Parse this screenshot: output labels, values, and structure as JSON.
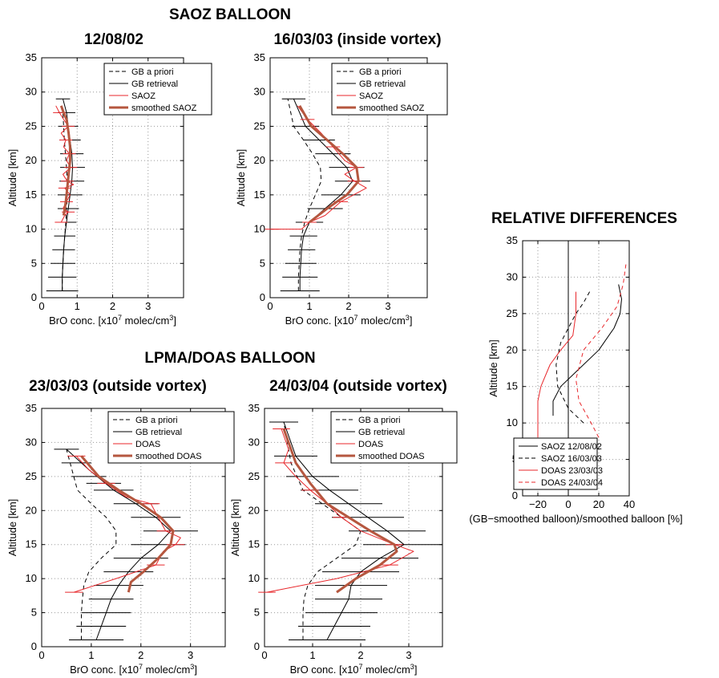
{
  "titles": {
    "saoz": "SAOZ BALLOON",
    "lpma": "LPMA/DOAS BALLOON",
    "rel": "RELATIVE DIFFERENCES"
  },
  "colors": {
    "black": "#000000",
    "red": "#e8272b",
    "brown": "#b5573f",
    "grid": "#999999"
  },
  "chart_data": [
    {
      "id": "p1",
      "type": "line",
      "title": "12/08/02",
      "xlabel_pre": "BrO conc. [x10",
      "xlabel_sup": "7",
      "xlabel_post": " molec/cm",
      "xlabel_sup2": "3",
      "xlabel_end": "]",
      "ylabel": "Altitude [km]",
      "xlim": [
        0,
        4
      ],
      "ylim": [
        0,
        35
      ],
      "xticks": [
        0,
        1,
        2,
        3
      ],
      "yticks": [
        0,
        5,
        10,
        15,
        20,
        25,
        30,
        35
      ],
      "legend": [
        "GB a priori",
        "GB retrieval",
        "SAOZ",
        "smoothed SAOZ"
      ],
      "series": [
        {
          "name": "GB a priori",
          "style": "dashed",
          "color": "black",
          "width": 1,
          "x": [
            0.58,
            0.58,
            0.6,
            0.62,
            0.65,
            0.68,
            0.7,
            0.72,
            0.72,
            0.7,
            0.67,
            0.64,
            0.62,
            0.6
          ],
          "y": [
            1,
            3,
            5,
            7,
            9,
            11,
            13,
            15,
            17,
            19,
            21,
            23,
            25,
            27
          ]
        },
        {
          "name": "GB retrieval",
          "style": "solid",
          "color": "black",
          "width": 1,
          "x": [
            0.58,
            0.58,
            0.6,
            0.62,
            0.65,
            0.7,
            0.75,
            0.8,
            0.85,
            0.87,
            0.85,
            0.8,
            0.75,
            0.7,
            0.6
          ],
          "y": [
            1,
            3,
            5,
            7,
            9,
            11,
            13,
            15,
            17,
            19,
            21,
            23,
            25,
            27,
            29
          ]
        },
        {
          "name": "SAOZ",
          "style": "solid",
          "color": "red",
          "width": 1,
          "x": [
            0.55,
            0.65,
            0.75,
            0.6,
            0.7,
            0.8,
            0.65,
            0.9,
            0.72,
            0.6,
            0.82,
            0.7,
            0.78,
            0.62,
            0.68,
            0.55,
            0.75,
            0.62,
            0.5,
            0.4
          ],
          "y": [
            11,
            12,
            12.5,
            13,
            14,
            15,
            16,
            16.5,
            17,
            18,
            19,
            20,
            21,
            22,
            23,
            24,
            25,
            26,
            27,
            28
          ]
        },
        {
          "name": "smoothed SAOZ",
          "style": "solid",
          "color": "brown",
          "width": 3,
          "x": [
            0.62,
            0.68,
            0.72,
            0.76,
            0.8,
            0.8,
            0.76,
            0.7,
            0.62,
            0.55
          ],
          "y": [
            12,
            14,
            16,
            18,
            20,
            22,
            24,
            26,
            27,
            28
          ]
        }
      ],
      "errorbars": {
        "x": [
          0.58,
          0.58,
          0.6,
          0.62,
          0.65,
          0.7,
          0.75,
          0.8,
          0.85,
          0.87,
          0.85,
          0.8,
          0.75,
          0.7,
          0.6
        ],
        "y": [
          1,
          3,
          5,
          7,
          9,
          11,
          13,
          15,
          17,
          19,
          21,
          23,
          25,
          27,
          29
        ],
        "err": [
          0.45,
          0.4,
          0.35,
          0.32,
          0.3,
          0.28,
          0.3,
          0.35,
          0.35,
          0.35,
          0.33,
          0.3,
          0.28,
          0.25,
          0.2
        ]
      }
    },
    {
      "id": "p2",
      "type": "line",
      "title": "16/03/03 (inside vortex)",
      "xlabel_pre": "BrO conc. [x10",
      "xlabel_sup": "7",
      "xlabel_post": " molec/cm",
      "xlabel_sup2": "3",
      "xlabel_end": "]",
      "ylabel": "Altitude [km]",
      "xlim": [
        0,
        4
      ],
      "ylim": [
        0,
        35
      ],
      "xticks": [
        0,
        1,
        2,
        3
      ],
      "yticks": [
        0,
        5,
        10,
        15,
        20,
        25,
        30,
        35
      ],
      "legend": [
        "GB a priori",
        "GB retrieval",
        "SAOZ",
        "smoothed SAOZ"
      ],
      "series": [
        {
          "name": "GB a priori",
          "style": "dashed",
          "color": "black",
          "width": 1,
          "x": [
            0.72,
            0.72,
            0.74,
            0.76,
            0.8,
            0.88,
            1.0,
            1.15,
            1.3,
            1.28,
            1.08,
            0.85,
            0.6,
            0.45
          ],
          "y": [
            1,
            3,
            5,
            7,
            9,
            11,
            13,
            15,
            17,
            19,
            21,
            23,
            25,
            29
          ]
        },
        {
          "name": "GB retrieval",
          "style": "solid",
          "color": "black",
          "width": 1,
          "x": [
            0.76,
            0.76,
            0.78,
            0.8,
            0.85,
            1.0,
            1.4,
            1.8,
            2.1,
            1.95,
            1.6,
            1.25,
            0.9,
            0.6
          ],
          "y": [
            1,
            3,
            5,
            7,
            9,
            11,
            13,
            15,
            17,
            19,
            21,
            23,
            25,
            29
          ]
        },
        {
          "name": "SAOZ",
          "style": "solid",
          "color": "red",
          "width": 1,
          "x": [
            0.05,
            0.8,
            1.0,
            1.4,
            1.8,
            2.45,
            2.15,
            1.9,
            2.2,
            1.9,
            1.6,
            1.3,
            0.95,
            0.7
          ],
          "y": [
            10,
            10,
            11,
            12,
            14,
            16,
            17,
            18,
            19,
            20,
            22,
            24,
            26,
            28
          ]
        },
        {
          "name": "smoothed SAOZ",
          "style": "solid",
          "color": "brown",
          "width": 3,
          "x": [
            1.0,
            1.45,
            1.95,
            2.25,
            2.2,
            1.85,
            1.45,
            1.05,
            0.75
          ],
          "y": [
            11,
            13,
            15,
            17,
            19,
            21,
            23,
            25,
            28
          ]
        }
      ],
      "errorbars": {
        "x": [
          0.76,
          0.76,
          0.78,
          0.8,
          0.85,
          1.0,
          1.4,
          1.8,
          2.1,
          1.95,
          1.6,
          1.25,
          0.9,
          0.6
        ],
        "y": [
          1,
          3,
          5,
          7,
          9,
          11,
          13,
          15,
          17,
          19,
          21,
          23,
          25,
          29
        ],
        "err": [
          0.5,
          0.45,
          0.4,
          0.35,
          0.35,
          0.35,
          0.45,
          0.5,
          0.45,
          0.45,
          0.45,
          0.4,
          0.35,
          0.3
        ]
      }
    },
    {
      "id": "p3",
      "type": "line",
      "title": "23/03/03 (outside vortex)",
      "xlabel_pre": "BrO conc. [x10",
      "xlabel_sup": "7",
      "xlabel_post": " molec/cm",
      "xlabel_sup2": "3",
      "xlabel_end": "]",
      "ylabel": "Altitude [km]",
      "xlim": [
        0,
        3.7
      ],
      "ylim": [
        0,
        35
      ],
      "xticks": [
        0,
        1,
        2,
        3
      ],
      "yticks": [
        0,
        5,
        10,
        15,
        20,
        25,
        30,
        35
      ],
      "legend": [
        "GB a priori",
        "GB retrieval",
        "DOAS",
        "smoothed DOAS"
      ],
      "series": [
        {
          "name": "GB a priori",
          "style": "dashed",
          "color": "black",
          "width": 1,
          "x": [
            0.8,
            0.8,
            0.8,
            0.82,
            0.85,
            0.95,
            1.2,
            1.5,
            1.5,
            1.3,
            1.0,
            0.72,
            0.5
          ],
          "y": [
            1,
            3,
            5,
            7,
            9,
            11,
            13,
            15,
            17,
            19,
            21,
            23,
            29
          ]
        },
        {
          "name": "GB retrieval",
          "style": "solid",
          "color": "black",
          "width": 1,
          "x": [
            1.1,
            1.2,
            1.3,
            1.4,
            1.55,
            1.75,
            2.0,
            2.35,
            2.6,
            2.3,
            1.9,
            1.45,
            0.95,
            0.5
          ],
          "y": [
            1,
            3,
            5,
            7,
            9,
            11,
            13,
            15,
            17,
            19,
            21,
            23,
            26,
            29
          ]
        },
        {
          "name": "DOAS",
          "style": "solid",
          "color": "red",
          "width": 1,
          "x": [
            0.65,
            1.5,
            2.3,
            2.45,
            2.7,
            2.8,
            2.5,
            2.35,
            2.2,
            1.7,
            1.3,
            0.95,
            0.7
          ],
          "y": [
            8,
            10,
            12,
            14,
            15,
            16,
            17,
            19,
            21,
            22,
            24,
            26,
            28
          ]
        },
        {
          "name": "smoothed DOAS",
          "style": "solid",
          "color": "brown",
          "width": 3,
          "x": [
            1.75,
            1.8,
            2.05,
            2.35,
            2.6,
            2.65,
            2.4,
            2.0,
            1.55,
            1.15,
            0.8
          ],
          "y": [
            8,
            9.5,
            11,
            13,
            15,
            17,
            19,
            21,
            23,
            25,
            28
          ]
        }
      ],
      "errorbars": {
        "x": [
          1.1,
          1.2,
          1.3,
          1.4,
          1.55,
          1.75,
          2.0,
          2.35,
          2.6,
          2.3,
          1.9,
          1.45,
          1.25,
          0.95,
          0.7,
          0.5
        ],
        "y": [
          1,
          3,
          5,
          7,
          9,
          11,
          13,
          15,
          17,
          19,
          21,
          23,
          24,
          25,
          27,
          29
        ],
        "err": [
          0.55,
          0.5,
          0.5,
          0.45,
          0.5,
          0.5,
          0.55,
          0.55,
          0.55,
          0.5,
          0.45,
          0.4,
          0.35,
          0.35,
          0.3,
          0.25
        ]
      }
    },
    {
      "id": "p4",
      "type": "line",
      "title": "24/03/04 (outside vortex)",
      "xlabel_pre": "BrO conc. [x10",
      "xlabel_sup": "7",
      "xlabel_post": " molec/cm",
      "xlabel_sup2": "3",
      "xlabel_end": "]",
      "ylabel": "Altitude [km]",
      "xlim": [
        0,
        3.7
      ],
      "ylim": [
        0,
        35
      ],
      "xticks": [
        0,
        1,
        2,
        3
      ],
      "yticks": [
        0,
        5,
        10,
        15,
        20,
        25,
        30,
        35
      ],
      "legend": [
        "GB a priori",
        "GB retrieval",
        "DOAS",
        "smoothed DOAS"
      ],
      "series": [
        {
          "name": "GB a priori",
          "style": "dashed",
          "color": "black",
          "width": 1,
          "x": [
            0.8,
            0.8,
            0.8,
            0.82,
            0.9,
            1.1,
            1.5,
            1.9,
            2.0,
            1.6,
            1.2,
            0.8,
            0.55,
            0.4
          ],
          "y": [
            1,
            3,
            5,
            7,
            9,
            11,
            13,
            15,
            17,
            19,
            21,
            23,
            27,
            33
          ]
        },
        {
          "name": "GB retrieval",
          "style": "solid",
          "color": "black",
          "width": 1,
          "x": [
            1.3,
            1.45,
            1.6,
            1.75,
            1.8,
            2.0,
            2.4,
            2.9,
            2.55,
            2.15,
            1.75,
            1.35,
            1.0,
            0.65,
            0.4
          ],
          "y": [
            1,
            3,
            5,
            7,
            9,
            11,
            13,
            15,
            17,
            19,
            21,
            23,
            25,
            28,
            33
          ]
        },
        {
          "name": "DOAS",
          "style": "solid",
          "color": "red",
          "width": 1,
          "x": [
            0.05,
            1.5,
            2.6,
            3.1,
            2.7,
            2.0,
            1.6,
            1.3,
            0.95,
            0.65,
            0.4,
            0.5,
            0.35
          ],
          "y": [
            8,
            10,
            12,
            14,
            15,
            17,
            19,
            21,
            23,
            25,
            27,
            29,
            32
          ]
        },
        {
          "name": "smoothed DOAS",
          "style": "solid",
          "color": "brown",
          "width": 3,
          "x": [
            1.5,
            1.9,
            2.4,
            2.75,
            2.7,
            2.2,
            1.75,
            1.3,
            0.95,
            0.65,
            0.4
          ],
          "y": [
            8,
            10,
            12,
            14,
            15,
            17,
            19,
            21,
            24,
            27,
            32
          ]
        }
      ],
      "errorbars": {
        "x": [
          1.3,
          1.45,
          1.6,
          1.75,
          1.8,
          2.0,
          2.4,
          2.9,
          2.55,
          2.15,
          1.75,
          1.35,
          1.0,
          0.65,
          0.4
        ],
        "y": [
          1,
          3,
          5,
          7,
          9,
          11,
          13,
          15,
          17,
          19,
          21,
          23,
          25,
          28,
          33
        ],
        "err": [
          0.8,
          0.75,
          0.75,
          0.7,
          0.75,
          0.8,
          0.8,
          0.85,
          0.8,
          0.75,
          0.7,
          0.6,
          0.55,
          0.45,
          0.3
        ]
      }
    },
    {
      "id": "p5",
      "type": "line",
      "title": "",
      "xlabel": "(GB−smoothed balloon)/smoothed balloon [%]",
      "ylabel": "Altitude [km]",
      "xlim": [
        -30,
        40
      ],
      "ylim": [
        0,
        35
      ],
      "xticks": [
        -20,
        0,
        20,
        40
      ],
      "xticklabels": [
        "−20",
        "0",
        "20",
        "40"
      ],
      "yticks": [
        0,
        5,
        10,
        15,
        20,
        25,
        30,
        35
      ],
      "legend": [
        "SAOZ 12/08/02",
        "SAOZ 16/03/03",
        "DOAS 23/03/03",
        "DOAS 24/03/04"
      ],
      "series": [
        {
          "name": "SAOZ 12/08/02",
          "style": "solid",
          "color": "black",
          "width": 1,
          "x": [
            -10,
            -10,
            -5,
            5,
            20,
            30,
            34,
            35,
            33
          ],
          "y": [
            11,
            13,
            15,
            17,
            20,
            23,
            25,
            27,
            29
          ]
        },
        {
          "name": "SAOZ 16/03/03",
          "style": "dashed",
          "color": "black",
          "width": 1,
          "x": [
            10,
            0,
            -7,
            -8,
            -5,
            0,
            5,
            10,
            14
          ],
          "y": [
            10,
            12,
            15,
            18,
            21,
            23,
            25,
            26.5,
            28
          ]
        },
        {
          "name": "DOAS 23/03/03",
          "style": "solid",
          "color": "red",
          "width": 1,
          "x": [
            -20,
            -20,
            -20,
            -18,
            -12,
            -5,
            3,
            5,
            5
          ],
          "y": [
            8,
            11,
            13,
            15,
            18,
            20,
            22,
            25,
            28
          ]
        },
        {
          "name": "DOAS 24/03/04",
          "style": "dashed",
          "color": "red",
          "width": 1,
          "x": [
            20,
            15,
            7,
            5,
            10,
            22,
            32,
            36,
            38
          ],
          "y": [
            8,
            10,
            13,
            16,
            20,
            23,
            26,
            29,
            32
          ]
        }
      ]
    }
  ]
}
